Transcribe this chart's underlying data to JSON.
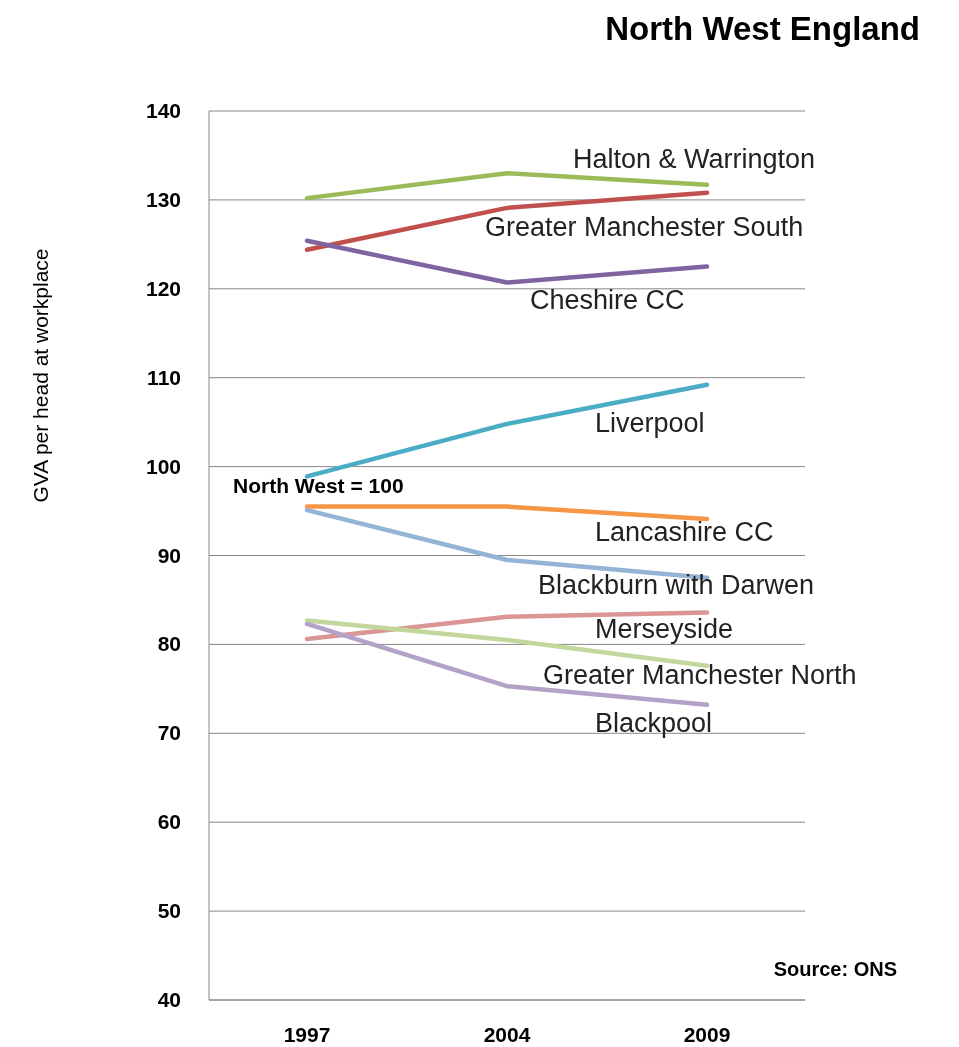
{
  "chart_data": {
    "type": "line",
    "title": "North West England",
    "ylabel": "GVA per head at workplace",
    "categories": [
      "1997",
      "2004",
      "2009"
    ],
    "ylim": [
      40,
      140
    ],
    "yticks": [
      40,
      50,
      60,
      70,
      80,
      90,
      100,
      110,
      120,
      130,
      140
    ],
    "grid": "y",
    "annotations": [
      "North West = 100",
      "Source: ONS"
    ],
    "series": [
      {
        "name": "Halton & Warrington",
        "color": "#9bbb59",
        "values": [
          130.2,
          133,
          131.7
        ]
      },
      {
        "name": "Greater Manchester South",
        "color": "#c0504d",
        "values": [
          124.4,
          129.1,
          130.8
        ]
      },
      {
        "name": "Cheshire CC",
        "color": "#8064a2",
        "values": [
          125.4,
          120.7,
          122.5
        ]
      },
      {
        "name": "Liverpool",
        "color": "#4bacc6",
        "values": [
          98.9,
          104.8,
          109.2
        ]
      },
      {
        "name": "Lancashire CC",
        "color": "#f79646",
        "values": [
          95.5,
          95.5,
          94.1
        ]
      },
      {
        "name": "Blackburn with Darwen",
        "color": "#95b3d7",
        "values": [
          95.1,
          89.5,
          87.5
        ]
      },
      {
        "name": "Merseyside",
        "color": "#d99694",
        "values": [
          80.6,
          83.1,
          83.6
        ]
      },
      {
        "name": "Greater Manchester North",
        "color": "#c3d69b",
        "values": [
          82.7,
          80.5,
          77.6
        ]
      },
      {
        "name": "Blackpool",
        "color": "#b3a2c7",
        "values": [
          82.3,
          75.3,
          73.2
        ]
      }
    ]
  }
}
